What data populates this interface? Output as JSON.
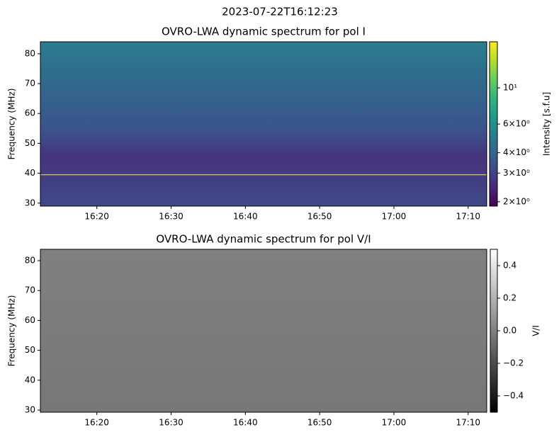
{
  "title": "2023-07-22T16:12:23",
  "chart_data": [
    {
      "type": "heatmap",
      "title": "OVRO-LWA dynamic spectrum for pol I",
      "ylabel": "Frequency (MHz)",
      "xlim": [
        972.4,
        1032.5
      ],
      "xticks": [
        {
          "value": 980,
          "label": "16:20"
        },
        {
          "value": 990,
          "label": "16:30"
        },
        {
          "value": 1000,
          "label": "16:40"
        },
        {
          "value": 1010,
          "label": "16:50"
        },
        {
          "value": 1020,
          "label": "17:00"
        },
        {
          "value": 1030,
          "label": "17:10"
        }
      ],
      "ylim": [
        29,
        84
      ],
      "yticks": [
        30,
        40,
        50,
        60,
        70,
        80
      ],
      "colormap": "viridis",
      "colorbar": {
        "label": "Intensity [s.f.u]",
        "scale": "log",
        "lim": [
          1.88,
          19.2
        ],
        "ticks": [
          {
            "value": 2,
            "label": "2×10⁰"
          },
          {
            "value": 3,
            "label": "3×10⁰"
          },
          {
            "value": 4,
            "label": "4×10⁰"
          },
          {
            "value": 6,
            "label": "6×10⁰"
          },
          {
            "value": 10,
            "label": "10¹"
          }
        ]
      },
      "hline": {
        "value": 39.5,
        "color": "#f0f04a"
      }
    },
    {
      "type": "heatmap",
      "title": "OVRO-LWA dynamic spectrum for pol V/I",
      "ylabel": "Frequency (MHz)",
      "xlim": [
        972.4,
        1032.5
      ],
      "xticks": [
        {
          "value": 980,
          "label": "16:20"
        },
        {
          "value": 990,
          "label": "16:30"
        },
        {
          "value": 1000,
          "label": "16:40"
        },
        {
          "value": 1010,
          "label": "16:50"
        },
        {
          "value": 1020,
          "label": "17:00"
        },
        {
          "value": 1030,
          "label": "17:10"
        }
      ],
      "ylim": [
        29.3,
        83.8
      ],
      "yticks": [
        30,
        40,
        50,
        60,
        70,
        80
      ],
      "colormap": "gray",
      "colorbar": {
        "label": "V/I",
        "scale": "linear",
        "lim": [
          -0.5,
          0.5
        ],
        "ticks": [
          {
            "value": -0.4,
            "label": "−0.4"
          },
          {
            "value": -0.2,
            "label": "−0.2"
          },
          {
            "value": 0,
            "label": "0.0"
          },
          0.2,
          0.4
        ]
      }
    }
  ]
}
